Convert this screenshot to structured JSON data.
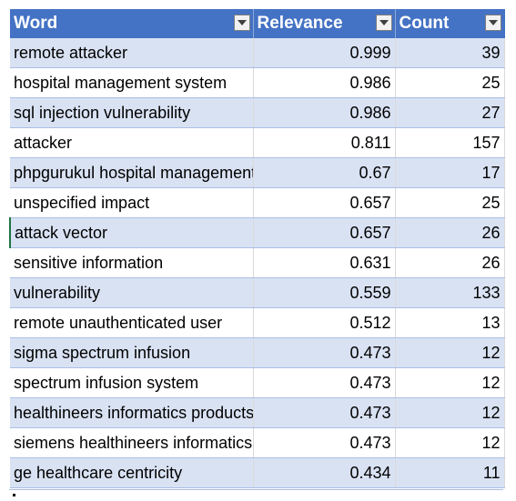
{
  "headers": {
    "word": "Word",
    "relevance": "Relevance",
    "count": "Count"
  },
  "rows": [
    {
      "word": "remote attacker",
      "relevance": "0.999",
      "count": "39"
    },
    {
      "word": "hospital management system",
      "relevance": "0.986",
      "count": "25"
    },
    {
      "word": "sql injection vulnerability",
      "relevance": "0.986",
      "count": "27"
    },
    {
      "word": "attacker",
      "relevance": "0.811",
      "count": "157"
    },
    {
      "word": "phpgurukul hospital management",
      "relevance": "0.67",
      "count": "17"
    },
    {
      "word": "unspecified impact",
      "relevance": "0.657",
      "count": "25"
    },
    {
      "word": "attack vector",
      "relevance": "0.657",
      "count": "26"
    },
    {
      "word": "sensitive information",
      "relevance": "0.631",
      "count": "26"
    },
    {
      "word": "vulnerability",
      "relevance": "0.559",
      "count": "133"
    },
    {
      "word": "remote unauthenticated user",
      "relevance": "0.512",
      "count": "13"
    },
    {
      "word": "sigma spectrum infusion",
      "relevance": "0.473",
      "count": "12"
    },
    {
      "word": "spectrum infusion system",
      "relevance": "0.473",
      "count": "12"
    },
    {
      "word": "healthineers informatics products",
      "relevance": "0.473",
      "count": "12"
    },
    {
      "word": "siemens healthineers informatics",
      "relevance": "0.473",
      "count": "12"
    },
    {
      "word": "ge healthcare centricity",
      "relevance": "0.434",
      "count": "11"
    }
  ],
  "colors": {
    "header_bg": "#4472c4",
    "band_bg": "#d9e2f3",
    "header_text": "#ffffff"
  },
  "icons": {
    "filter": "filter-dropdown-icon"
  }
}
